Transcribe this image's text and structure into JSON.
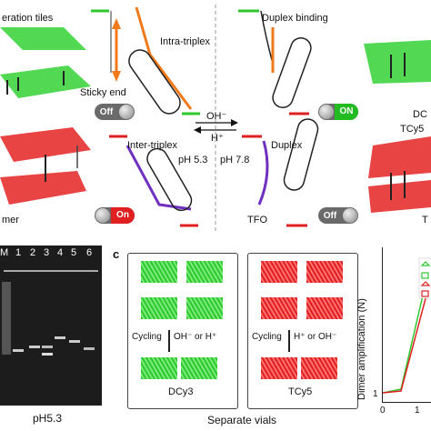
{
  "top": {
    "tiles_label": "eration tiles",
    "sticky_end": "Sticky end",
    "intra_triplex": "Intra-triplex",
    "duplex_binding": "Duplex binding",
    "inter_triplex": "Inter-triplex",
    "duplex": "Duplex",
    "ph_left": "pH 5.3",
    "ph_right": "pH 7.8",
    "oh": "OH⁻",
    "h": "H⁺",
    "tfo": "TFO",
    "dc_label": "DC",
    "tcy_label": "TCy5",
    "t_label": "T",
    "mer_label": "mer",
    "toggle_off_1": "Off",
    "toggle_on_1": "ON",
    "toggle_on_2": "On",
    "toggle_off_2": "Off"
  },
  "gel": {
    "lanes": [
      "M",
      "1",
      "2",
      "3",
      "4",
      "5",
      "6"
    ],
    "ph": "pH5.3"
  },
  "panel_c": {
    "letter": "c",
    "left_cycle": "Cycling",
    "left_ions": "OH⁻ or H⁺",
    "right_cycle": "Cycling",
    "right_ions": "H⁺ or OH⁻",
    "left_name": "DCy3",
    "right_name": "TCy5",
    "caption": "Separate vials"
  },
  "panel_d": {
    "ylabel": "Dimer amplification (N)",
    "tick_x0": "0",
    "tick_x1": "1",
    "tick_y1": "1"
  },
  "colors": {
    "green": "#2ec82e",
    "red": "#e02020",
    "orange": "#f07a1a",
    "purple": "#7030c0"
  }
}
